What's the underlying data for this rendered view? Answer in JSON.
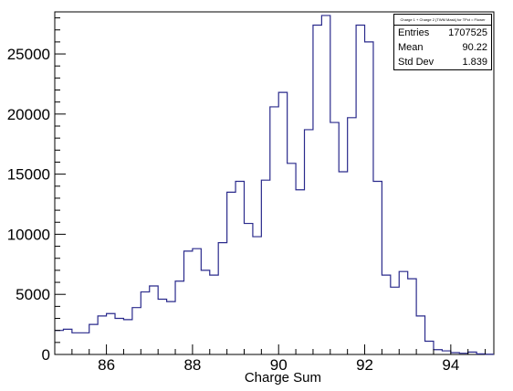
{
  "stats": {
    "title": "Charge 1 + Charge 2 {TWM Mask} for TPct = Flower",
    "entries_label": "Entries",
    "entries_value": "1707525",
    "mean_label": "Mean",
    "mean_value": "90.22",
    "stddev_label": "Std Dev",
    "stddev_value": "1.839"
  },
  "chart_data": {
    "type": "step-histogram",
    "xlabel": "Charge Sum",
    "ylabel": "",
    "xlim": [
      84.8,
      95.0
    ],
    "ylim": [
      0,
      28500
    ],
    "bin_width": 0.2,
    "line_color": "#2a2a8c",
    "x_ticks": [
      86,
      88,
      90,
      92,
      94
    ],
    "y_ticks": [
      0,
      5000,
      10000,
      15000,
      20000,
      25000
    ],
    "bin_edges_start": 84.8,
    "values": [
      2000,
      2100,
      1800,
      1800,
      2500,
      3200,
      3400,
      3000,
      2900,
      3900,
      5200,
      5700,
      4600,
      4400,
      6100,
      8600,
      8800,
      7000,
      6600,
      9300,
      13500,
      14400,
      10900,
      9800,
      14500,
      20600,
      21800,
      15900,
      13700,
      18700,
      27400,
      28200,
      19300,
      15200,
      19700,
      27400,
      26000,
      14400,
      6600,
      5600,
      6900,
      6300,
      3200,
      1100,
      400,
      300,
      150,
      100,
      200,
      50,
      20
    ]
  }
}
